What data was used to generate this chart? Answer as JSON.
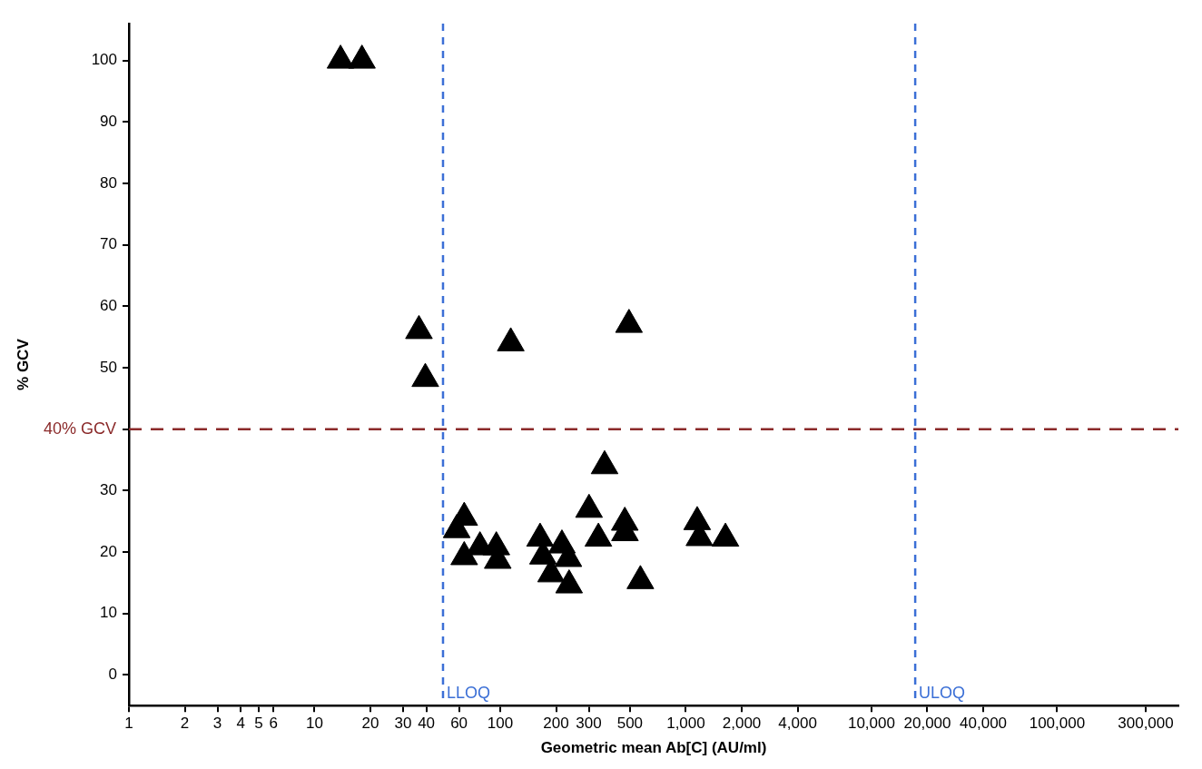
{
  "chart_data": {
    "type": "scatter",
    "xlabel": "Geometric mean Ab[C] (AU/ml)",
    "ylabel": "% GCV",
    "log": "x",
    "grid": false,
    "marker": "triangle",
    "xlim": [
      1,
      450000
    ],
    "ylim": [
      -5,
      106
    ],
    "xticks": [
      1,
      2,
      3,
      4,
      5,
      6,
      10,
      20,
      30,
      40,
      60,
      100,
      200,
      300,
      500,
      {
        "value": 1000,
        "label": "1,000"
      },
      {
        "value": 2000,
        "label": "2,000"
      },
      {
        "value": 4000,
        "label": "4,000"
      },
      {
        "value": 10000,
        "label": "10,000"
      },
      {
        "value": 20000,
        "label": "20,000"
      },
      {
        "value": 40000,
        "label": "40,000"
      },
      {
        "value": 100000,
        "label": "100,000"
      },
      {
        "value": 300000,
        "label": "300,000"
      }
    ],
    "yticks": [
      0,
      10,
      20,
      30,
      {
        "value": 40,
        "label": null
      },
      50,
      60,
      70,
      80,
      90,
      100
    ],
    "x": [
      13.8,
      18,
      36.5,
      39.5,
      114,
      494,
      365,
      301,
      338,
      469,
      470,
      1151,
      1183,
      1634,
      569,
      64,
      58.3,
      64,
      77.8,
      95.3,
      97,
      164,
      170,
      215,
      233,
      188,
      235
    ],
    "series": [
      {
        "color": "#000000",
        "values": [
          100,
          100,
          56,
          48.2,
          54,
          57,
          34,
          26.9,
          22.2,
          24.8,
          23.1,
          24.9,
          22.3,
          22.2,
          15.3,
          25.6,
          23.6,
          19.2,
          20.8,
          20.8,
          18.6,
          22.2,
          19.3,
          21.1,
          18.9,
          16.4,
          14.6
        ]
      }
    ],
    "ref_lines": [
      {
        "axis": "y",
        "value": 40,
        "label": "40% GCV",
        "color": "#8b2a2a",
        "line_style": "dashed"
      },
      {
        "axis": "x",
        "value": 49.2,
        "label": "LLOQ",
        "color": "#3b6fd6",
        "line_style": "dashed"
      },
      {
        "axis": "x",
        "value": 17200,
        "label": "ULOQ",
        "color": "#3b6fd6",
        "line_style": "dashed"
      }
    ]
  }
}
